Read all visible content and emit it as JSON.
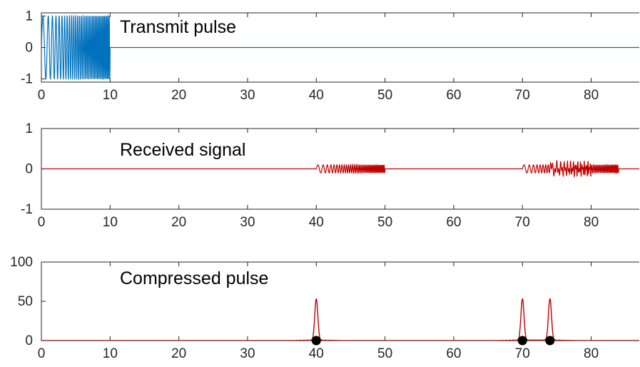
{
  "chart_data": [
    {
      "type": "line",
      "title": "Transmit pulse",
      "xlabel": "",
      "ylabel": "",
      "xlim": [
        0,
        87
      ],
      "ylim": [
        -1.1,
        1.1
      ],
      "xticks": [
        "0",
        "10",
        "20",
        "30",
        "40",
        "50",
        "60",
        "70",
        "80"
      ],
      "yticks": [
        "-1",
        "0",
        "1"
      ],
      "color": "#0072BD",
      "signal": {
        "kind": "chirp",
        "start": 0,
        "end": 10,
        "amplitude": 1.0,
        "f_start": 1.0,
        "f_end": 6.0
      },
      "baseline": 0
    },
    {
      "type": "line",
      "title": "Received signal",
      "xlabel": "",
      "ylabel": "",
      "xlim": [
        0,
        87
      ],
      "ylim": [
        -1,
        1
      ],
      "xticks": [
        "0",
        "10",
        "20",
        "30",
        "40",
        "50",
        "60",
        "70",
        "80"
      ],
      "yticks": [
        "-1",
        "0",
        "1"
      ],
      "color": "#C00000",
      "echoes": [
        {
          "start": 40,
          "end": 50,
          "amplitude": 0.1
        },
        {
          "start": 70,
          "end": 80,
          "amplitude": 0.1
        },
        {
          "start": 74,
          "end": 84,
          "amplitude": 0.1
        }
      ],
      "baseline": 0
    },
    {
      "type": "line",
      "title": "Compressed pulse",
      "xlabel": "",
      "ylabel": "",
      "xlim": [
        0,
        87
      ],
      "ylim": [
        0,
        100
      ],
      "xticks": [
        "0",
        "10",
        "20",
        "30",
        "40",
        "50",
        "60",
        "70",
        "80"
      ],
      "yticks": [
        "0",
        "50",
        "100"
      ],
      "color": "#C00000",
      "peaks": [
        {
          "x": 40,
          "y": 53
        },
        {
          "x": 70,
          "y": 53
        },
        {
          "x": 74,
          "y": 53
        }
      ],
      "markers": [
        {
          "x": 40,
          "y": 0
        },
        {
          "x": 70,
          "y": 0
        },
        {
          "x": 74,
          "y": 0
        }
      ],
      "marker_color": "#000000"
    }
  ]
}
